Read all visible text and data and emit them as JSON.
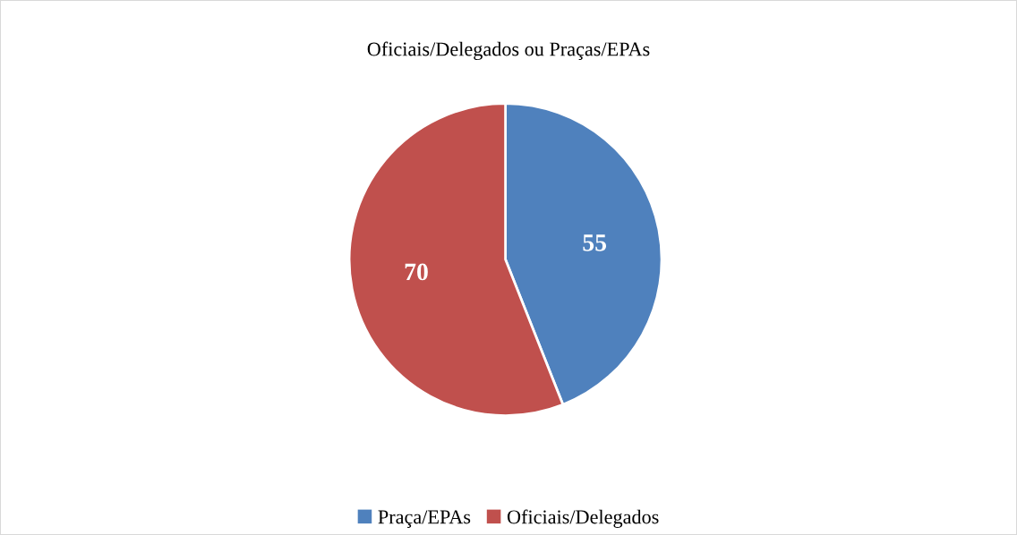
{
  "chart_data": {
    "type": "pie",
    "title": "Oficiais/Delegados ou Praças/EPAs",
    "categories": [
      "Praça/EPAs",
      "Oficiais/Delegados"
    ],
    "values": [
      55,
      70
    ],
    "colors": [
      "#4f81bd",
      "#c0504d"
    ],
    "data_labels": true,
    "legend": "bottom"
  }
}
